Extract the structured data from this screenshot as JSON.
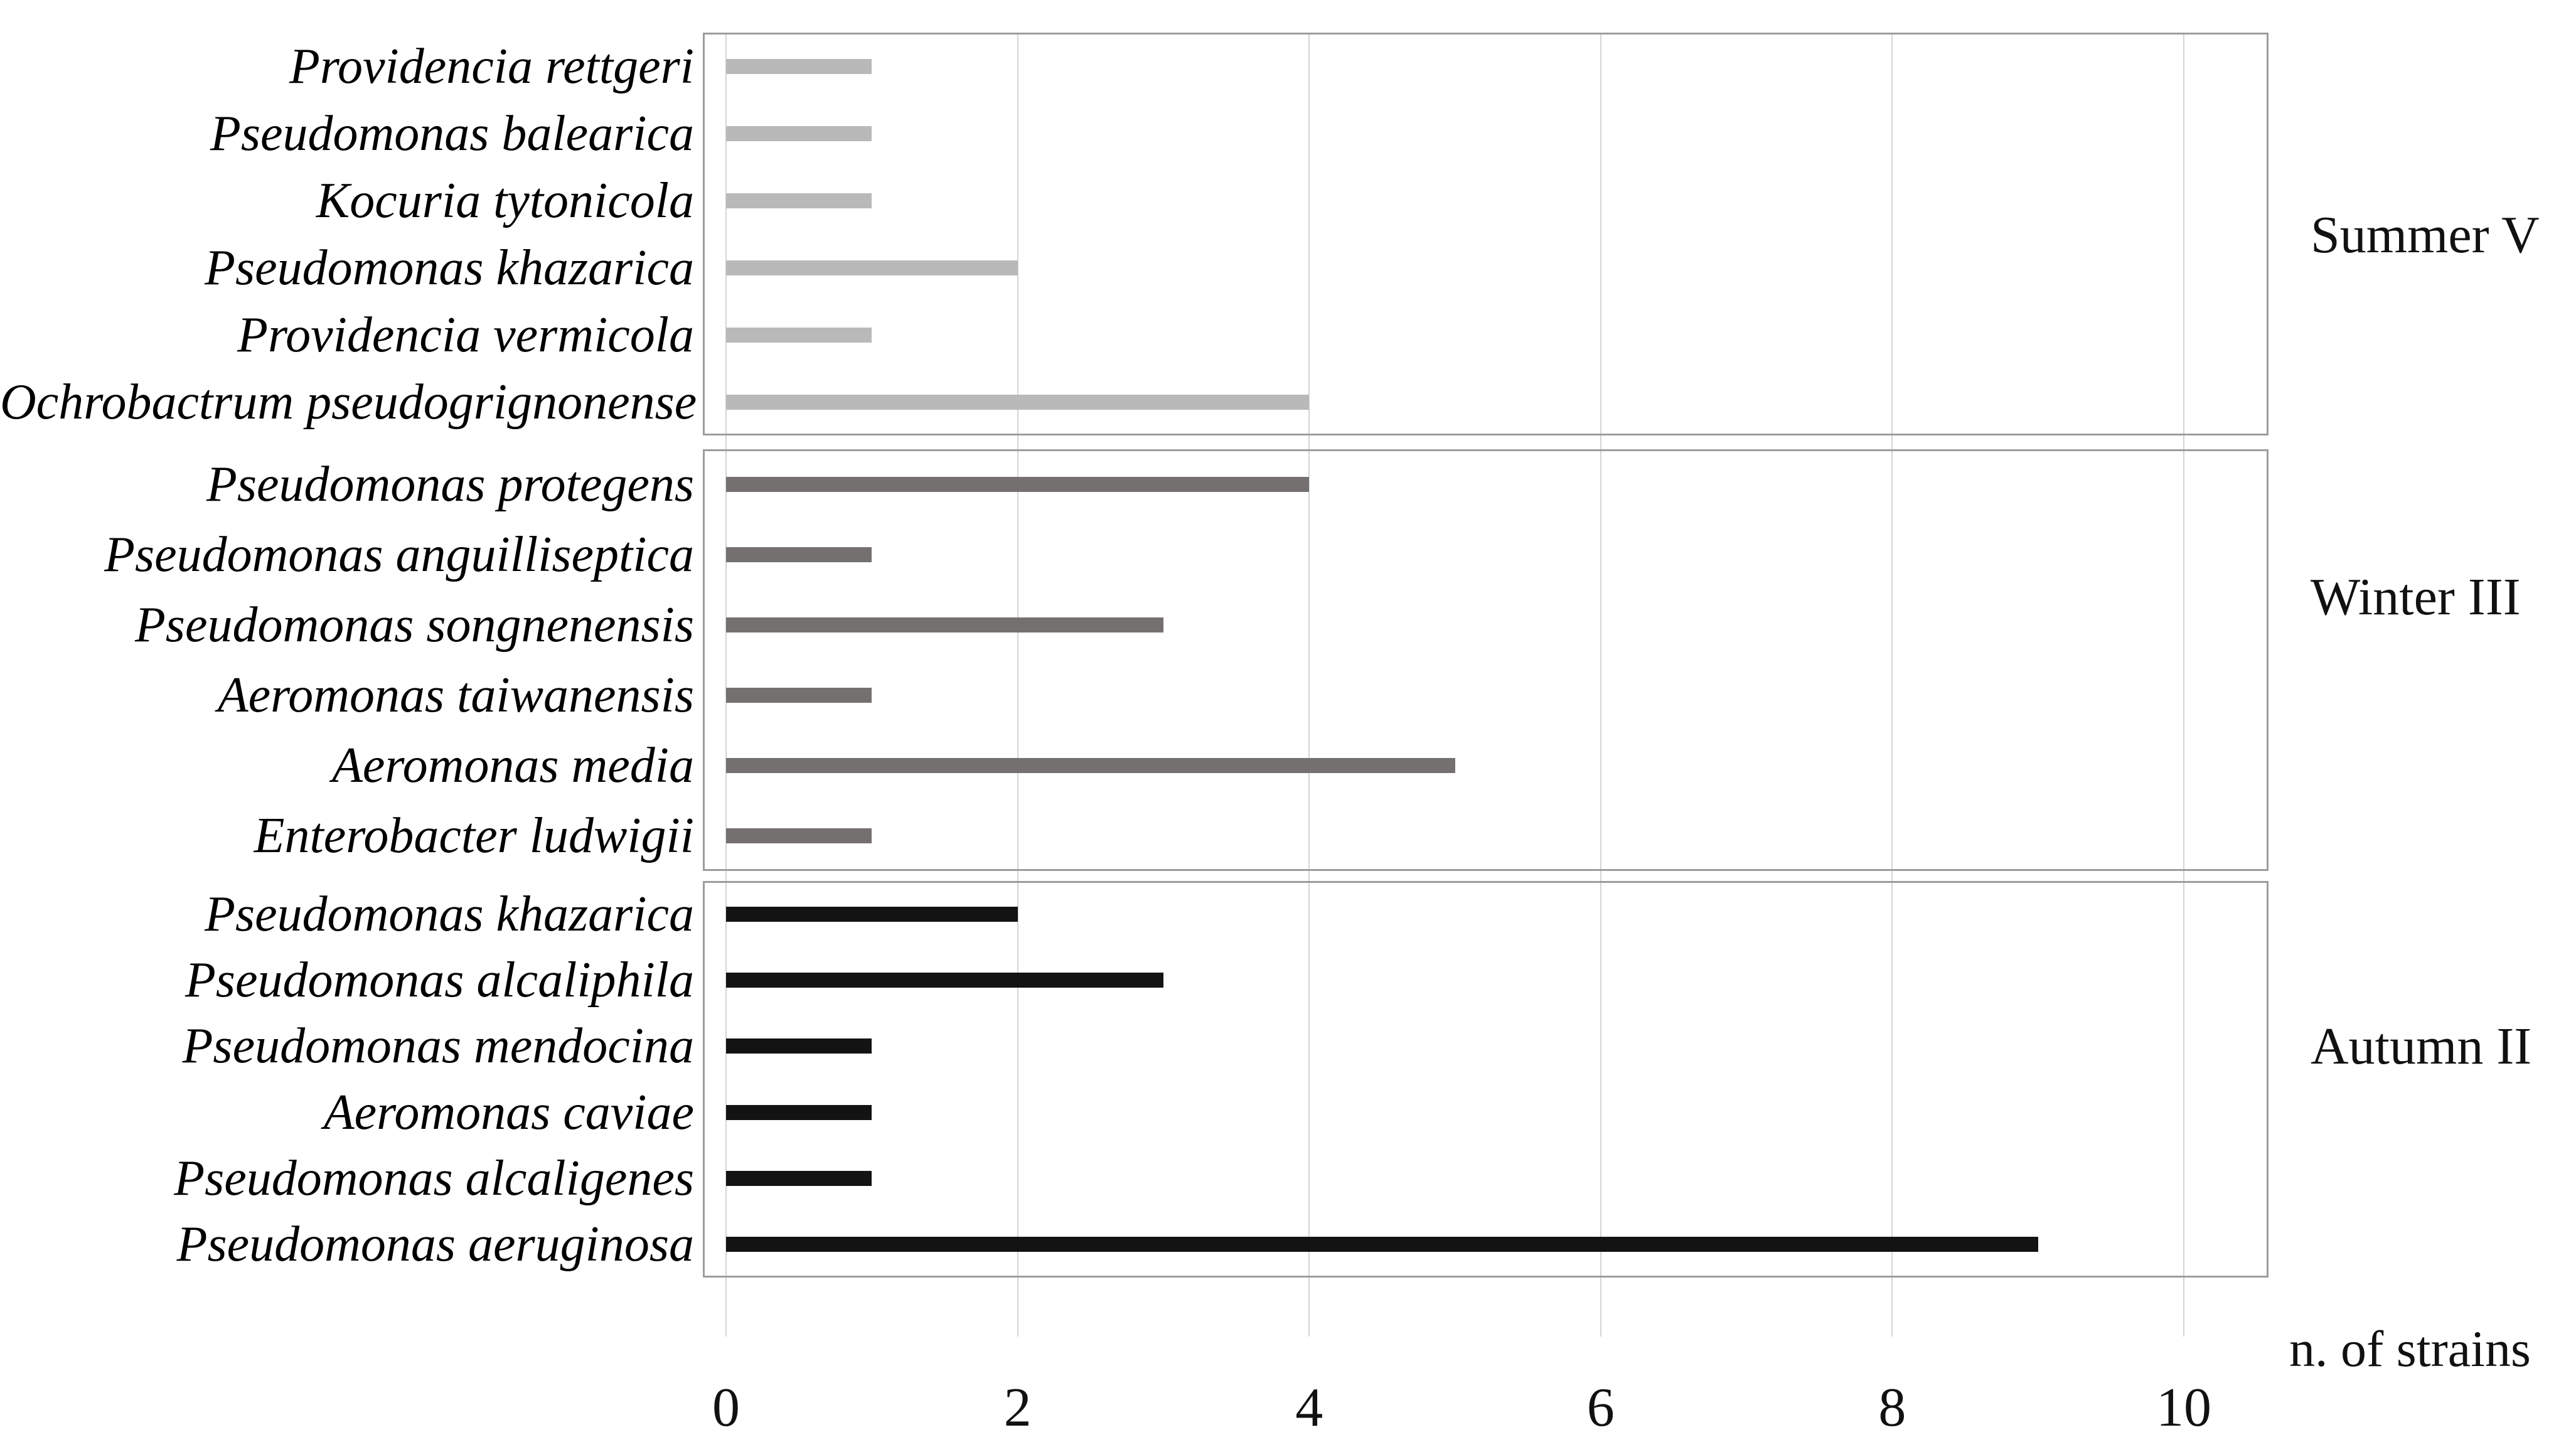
{
  "chart_data": {
    "type": "bar",
    "orientation": "horizontal",
    "title": "",
    "xlabel": "n. of strains",
    "ylabel": "",
    "xlim": [
      0,
      10.6
    ],
    "x_ticks": [
      0,
      2,
      4,
      6,
      8,
      10
    ],
    "grid": true,
    "legend_position": "right-of-each-panel",
    "groups": [
      {
        "label": "Summer V",
        "bar_color": "#b9b9b9",
        "categories": [
          "Providencia rettgeri",
          "Pseudomonas balearica",
          "Kocuria tytonicola",
          "Pseudomonas khazarica",
          "Providencia vermicola",
          "Ochrobactrum pseudogrignonense"
        ],
        "values": [
          1,
          1,
          1,
          2,
          1,
          4
        ]
      },
      {
        "label": "Winter III",
        "bar_color": "#757070",
        "categories": [
          "Pseudomonas protegens",
          "Pseudomonas anguilliseptica",
          "Pseudomonas songnenensis",
          "Aeromonas taiwanensis",
          "Aeromonas media",
          "Enterobacter ludwigii"
        ],
        "values": [
          4,
          1,
          3,
          1,
          5,
          1
        ]
      },
      {
        "label": "Autumn II",
        "bar_color": "#131313",
        "categories": [
          "Pseudomonas khazarica",
          "Pseudomonas alcaliphila",
          "Pseudomonas mendocina",
          "Aeromonas caviae",
          "Pseudomonas alcaligenes",
          "Pseudomonas aeruginosa"
        ],
        "values": [
          2,
          3,
          1,
          1,
          1,
          9
        ]
      }
    ],
    "colors": {
      "gridline": "#d4d4d4",
      "panel_border": "#9d9d9d",
      "text": "#111111"
    }
  }
}
